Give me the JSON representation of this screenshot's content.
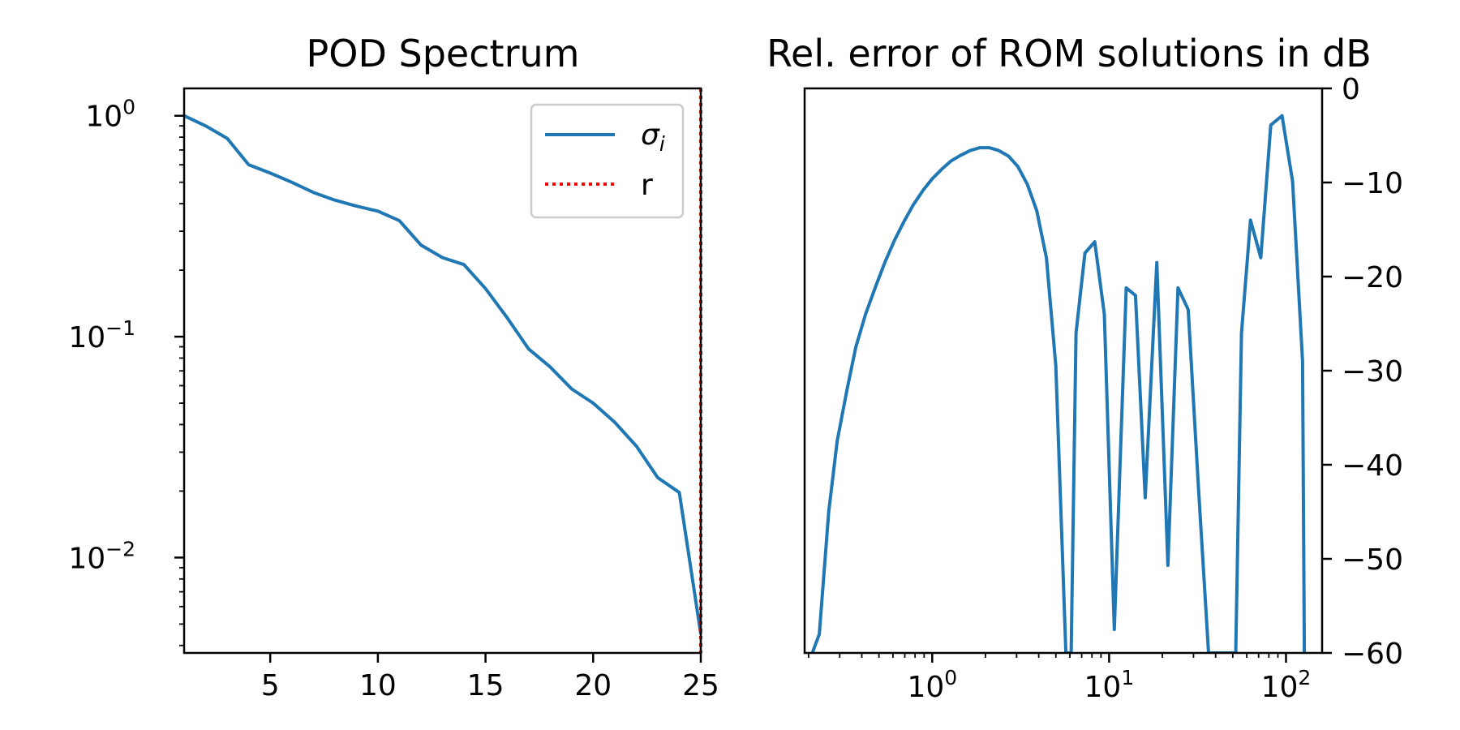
{
  "colors": {
    "series": "#1f77b4",
    "rank_line": "#ff0000",
    "axes": "#000000",
    "legend_border": "#cccccc"
  },
  "chart_data": [
    {
      "type": "line",
      "title": "POD Spectrum",
      "xlabel": "",
      "ylabel": "",
      "xlim": [
        1,
        25
      ],
      "ylim": [
        0.0037,
        1.33
      ],
      "yscale": "log",
      "grid": false,
      "legend_position": "top-right",
      "x_ticks": [
        "5",
        "10",
        "15",
        "20",
        "25"
      ],
      "y_ticks": [
        {
          "base": "10",
          "exp": "0"
        },
        {
          "base": "10",
          "exp": "−1"
        },
        {
          "base": "10",
          "exp": "−2"
        }
      ],
      "series": [
        {
          "name": "σ",
          "name_subscript": "i",
          "style": "solid",
          "x": [
            1,
            2,
            3,
            4,
            5,
            6,
            7,
            8,
            9,
            10,
            11,
            12,
            13,
            14,
            15,
            16,
            17,
            18,
            19,
            20,
            21,
            22,
            23,
            24,
            25
          ],
          "values": [
            1.0,
            0.9,
            0.79,
            0.6,
            0.55,
            0.5,
            0.45,
            0.415,
            0.39,
            0.37,
            0.335,
            0.26,
            0.228,
            0.212,
            0.165,
            0.122,
            0.088,
            0.073,
            0.058,
            0.05,
            0.041,
            0.032,
            0.023,
            0.0197,
            0.0045
          ]
        },
        {
          "name": "r",
          "style": "dotted",
          "vertical_line_x": 25
        }
      ]
    },
    {
      "type": "line",
      "title": "Rel. error of ROM solutions in dB",
      "xlabel": "",
      "ylabel": "",
      "xscale": "log",
      "xlim": [
        0.19,
        160
      ],
      "ylim": [
        -60,
        0
      ],
      "y_axis_side": "right",
      "grid": false,
      "x_ticks": [
        {
          "value": 1,
          "base": "10",
          "exp": "0"
        },
        {
          "value": 10,
          "base": "10",
          "exp": "1"
        },
        {
          "value": 100,
          "base": "10",
          "exp": "2"
        }
      ],
      "y_ticks": [
        "0",
        "−10",
        "−20",
        "−30",
        "−40",
        "−50",
        "−60"
      ],
      "series": [
        {
          "x": [
            0.21,
            0.23,
            0.26,
            0.29,
            0.33,
            0.37,
            0.42,
            0.48,
            0.54,
            0.61,
            0.69,
            0.78,
            0.89,
            1.0,
            1.13,
            1.28,
            1.45,
            1.64,
            1.86,
            2.1,
            2.38,
            2.7,
            3.05,
            3.45,
            3.9,
            4.42,
            5.0,
            5.7,
            6.1,
            6.5,
            7.3,
            8.3,
            9.4,
            10.7,
            12.5,
            14.1,
            16.0,
            18.6,
            21.5,
            24.5,
            28.0,
            32.0,
            36.5,
            40.0,
            52.0,
            56.0,
            63.0,
            72.0,
            82.0,
            95.0,
            109.0,
            124.0,
            127.0
          ],
          "values": [
            -60,
            -58,
            -45,
            -37.5,
            -32,
            -27.5,
            -24,
            -21,
            -18.5,
            -16.2,
            -14.2,
            -12.4,
            -10.8,
            -9.6,
            -8.6,
            -7.7,
            -7.1,
            -6.6,
            -6.3,
            -6.3,
            -6.6,
            -7.2,
            -8.3,
            -10.2,
            -13,
            -18,
            -29.5,
            -60,
            -60,
            -26,
            -17.5,
            -16.3,
            -24,
            -57.5,
            -21.2,
            -22,
            -43.5,
            -18.5,
            -50.7,
            -21.2,
            -23.5,
            -42.5,
            -60,
            -60,
            -60,
            -26,
            -14,
            -18,
            -3.9,
            -2.9,
            -9.9,
            -29,
            -60
          ]
        }
      ]
    }
  ]
}
